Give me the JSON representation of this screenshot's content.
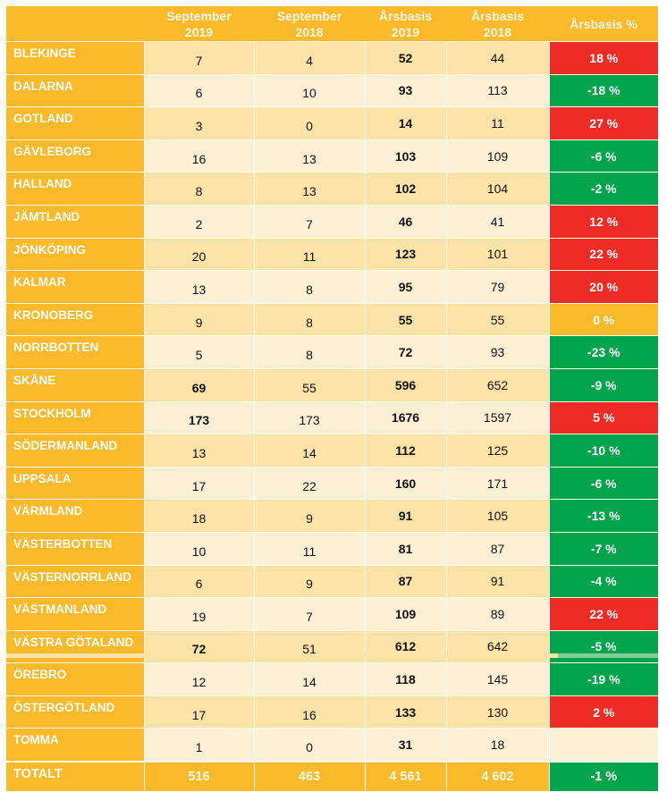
{
  "table": {
    "headers": [
      {
        "line1": "",
        "line2": ""
      },
      {
        "line1": "September",
        "line2": "2019"
      },
      {
        "line1": "September",
        "line2": "2018"
      },
      {
        "line1": "Årsbasis",
        "line2": "2019"
      },
      {
        "line1": "Årsbasis",
        "line2": "2018"
      },
      {
        "line1": "Årsbasis %",
        "line2": ""
      }
    ],
    "rows": [
      {
        "region": "BLEKINGE",
        "sep2019": "7",
        "sep2018": "4",
        "ars2019": "52",
        "ars2018": "44",
        "pct": "18 %",
        "status": "red"
      },
      {
        "region": "DALARNA",
        "sep2019": "6",
        "sep2018": "10",
        "ars2019": "93",
        "ars2018": "113",
        "pct": "-18 %",
        "status": "green"
      },
      {
        "region": "GOTLAND",
        "sep2019": "3",
        "sep2018": "0",
        "ars2019": "14",
        "ars2018": "11",
        "pct": "27 %",
        "status": "red"
      },
      {
        "region": "GÄVLEBORG",
        "sep2019": "16",
        "sep2018": "13",
        "ars2019": "103",
        "ars2018": "109",
        "pct": "-6 %",
        "status": "green"
      },
      {
        "region": "HALLAND",
        "sep2019": "8",
        "sep2018": "13",
        "ars2019": "102",
        "ars2018": "104",
        "pct": "-2 %",
        "status": "green"
      },
      {
        "region": "JÄMTLAND",
        "sep2019": "2",
        "sep2018": "7",
        "ars2019": "46",
        "ars2018": "41",
        "pct": "12 %",
        "status": "red"
      },
      {
        "region": "JÖNKÖPING",
        "sep2019": "20",
        "sep2018": "11",
        "ars2019": "123",
        "ars2018": "101",
        "pct": "22 %",
        "status": "red"
      },
      {
        "region": "KALMAR",
        "sep2019": "13",
        "sep2018": "8",
        "ars2019": "95",
        "ars2018": "79",
        "pct": "20 %",
        "status": "red"
      },
      {
        "region": "KRONOBERG",
        "sep2019": "9",
        "sep2018": "8",
        "ars2019": "55",
        "ars2018": "55",
        "pct": "0 %",
        "status": "amber"
      },
      {
        "region": "NORRBOTTEN",
        "sep2019": "5",
        "sep2018": "8",
        "ars2019": "72",
        "ars2018": "93",
        "pct": "-23 %",
        "status": "green"
      },
      {
        "region": "SKÅNE",
        "sep2019": "69",
        "sep2018": "55",
        "ars2019": "596",
        "ars2018": "652",
        "pct": "-9 %",
        "status": "green",
        "sep2019_bold": true
      },
      {
        "region": "STOCKHOLM",
        "sep2019": "173",
        "sep2018": "173",
        "ars2019": "1676",
        "ars2018": "1597",
        "pct": "5 %",
        "status": "red",
        "sep2019_bold": true
      },
      {
        "region": "SÖDERMANLAND",
        "sep2019": "13",
        "sep2018": "14",
        "ars2019": "112",
        "ars2018": "125",
        "pct": "-10 %",
        "status": "green"
      },
      {
        "region": "UPPSALA",
        "sep2019": "17",
        "sep2018": "22",
        "ars2019": "160",
        "ars2018": "171",
        "pct": "-6 %",
        "status": "green"
      },
      {
        "region": "VÄRMLAND",
        "sep2019": "18",
        "sep2018": "9",
        "ars2019": "91",
        "ars2018": "105",
        "pct": "-13 %",
        "status": "green"
      },
      {
        "region": "VÄSTERBOTTEN",
        "sep2019": "10",
        "sep2018": "11",
        "ars2019": "81",
        "ars2018": "87",
        "pct": "-7 %",
        "status": "green"
      },
      {
        "region": "VÄSTERNORRLAND",
        "sep2019": "6",
        "sep2018": "9",
        "ars2019": "87",
        "ars2018": "91",
        "pct": "-4 %",
        "status": "green"
      },
      {
        "region": "VÄSTMANLAND",
        "sep2019": "19",
        "sep2018": "7",
        "ars2019": "109",
        "ars2018": "89",
        "pct": "22 %",
        "status": "red"
      },
      {
        "region": "VÄSTRA GÖTALAND",
        "sep2019": "72",
        "sep2018": "51",
        "ars2019": "612",
        "ars2018": "642",
        "pct": "-5 %",
        "status": "green",
        "sep2019_bold": true
      },
      {
        "region": "ÖREBRO",
        "sep2019": "12",
        "sep2018": "14",
        "ars2019": "118",
        "ars2018": "145",
        "pct": "-19 %",
        "status": "green"
      },
      {
        "region": "ÖSTERGÖTLAND",
        "sep2019": "17",
        "sep2018": "16",
        "ars2019": "133",
        "ars2018": "130",
        "pct": "2 %",
        "status": "red"
      },
      {
        "region": "TOMMA",
        "sep2019": "1",
        "sep2018": "0",
        "ars2019": "31",
        "ars2018": "18",
        "pct": "",
        "status": "empty"
      }
    ],
    "total": {
      "region": "TOTALT",
      "sep2019": "516",
      "sep2018": "463",
      "ars2019": "4 561",
      "ars2018": "4 602",
      "pct": "-1 %",
      "status": "green"
    }
  },
  "colors": {
    "header_orange": "#fbba2a",
    "row_dark": "#fde3a7",
    "row_light": "#fef0d4",
    "increase_red": "#ee2b24",
    "decrease_green": "#00a44a"
  }
}
